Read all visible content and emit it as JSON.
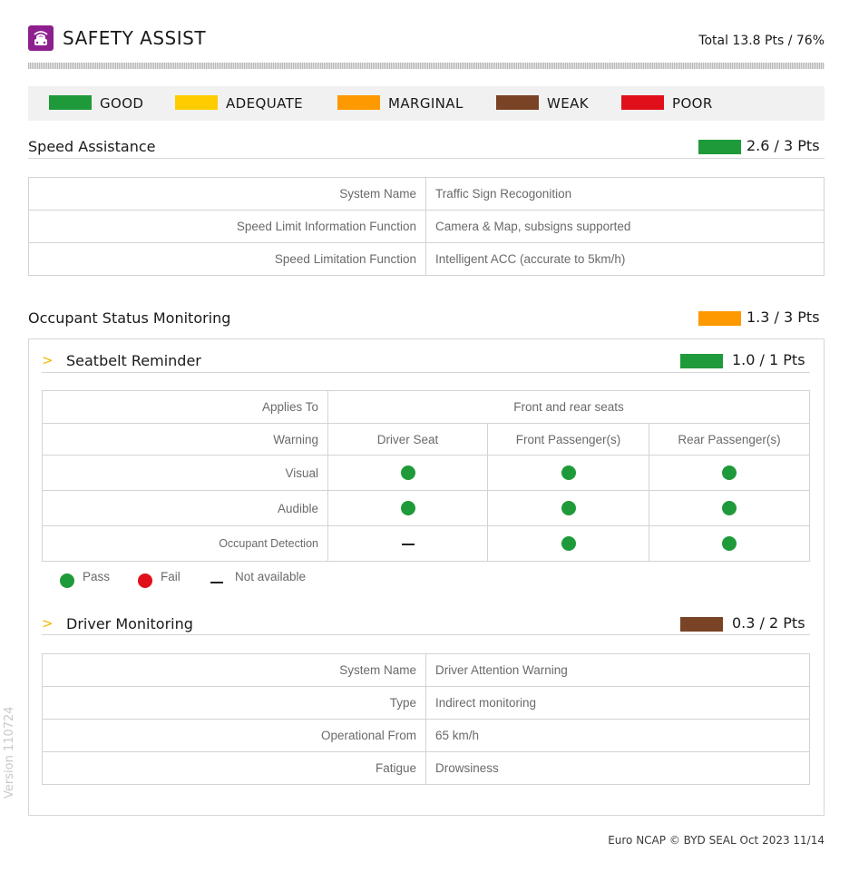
{
  "header": {
    "title": "SAFETY ASSIST",
    "total": "Total 13.8 Pts / 76%",
    "icon": "car-wifi-icon",
    "icon_color": "#8e1f8e"
  },
  "legend": [
    {
      "label": "GOOD",
      "color": "#1f9a3a"
    },
    {
      "label": "ADEQUATE",
      "color": "#ffcc00"
    },
    {
      "label": "MARGINAL",
      "color": "#ff9900"
    },
    {
      "label": "WEAK",
      "color": "#7a4326"
    },
    {
      "label": "POOR",
      "color": "#e0101a"
    }
  ],
  "speed_assistance": {
    "title": "Speed Assistance",
    "score": "2.6 / 3 Pts",
    "score_color": "#1f9a3a",
    "rows": [
      {
        "label": "System Name",
        "value": "Traffic Sign Recogonition"
      },
      {
        "label": "Speed Limit Information Function",
        "value": "Camera & Map, subsigns supported"
      },
      {
        "label": "Speed Limitation Function",
        "value": "Intelligent ACC (accurate to 5km/h)"
      }
    ]
  },
  "occupant_status": {
    "title": "Occupant Status Monitoring",
    "score": "1.3 / 3 Pts",
    "score_color": "#ff9900",
    "seatbelt": {
      "title": "Seatbelt Reminder",
      "score": "1.0 / 1 Pts",
      "score_color": "#1f9a3a",
      "applies_to_label": "Applies To",
      "applies_to_value": "Front and rear seats",
      "warning_label": "Warning",
      "columns": [
        "Driver Seat",
        "Front Passenger(s)",
        "Rear Passenger(s)"
      ],
      "rows": [
        {
          "label": "Visual",
          "values": [
            "pass",
            "pass",
            "pass"
          ]
        },
        {
          "label": "Audible",
          "values": [
            "pass",
            "pass",
            "pass"
          ]
        },
        {
          "label": "Occupant Detection",
          "values": [
            "not_available",
            "pass",
            "pass"
          ]
        }
      ],
      "legend": {
        "pass": "Pass",
        "fail": "Fail",
        "not_available": "Not available"
      },
      "pass_color": "#1f9a3a",
      "fail_color": "#e0101a"
    },
    "driver_monitoring": {
      "title": "Driver Monitoring",
      "score": "0.3 / 2 Pts",
      "score_color": "#7a4326",
      "rows": [
        {
          "label": "System Name",
          "value": "Driver Attention Warning"
        },
        {
          "label": "Type",
          "value": "Indirect monitoring"
        },
        {
          "label": "Operational From",
          "value": "65 km/h"
        },
        {
          "label": "Fatigue",
          "value": "Drowsiness"
        }
      ]
    }
  },
  "version": "Version 110724",
  "footer": "Euro NCAP © BYD SEAL Oct 2023 11/14"
}
